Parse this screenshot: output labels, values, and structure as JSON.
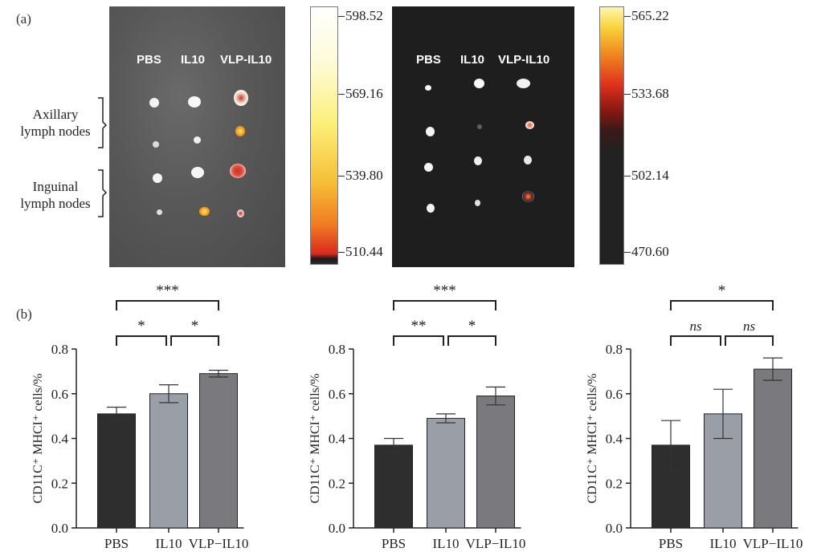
{
  "panel_a": {
    "label": "(a)",
    "left_image": {
      "groups": [
        "PBS",
        "IL10",
        "VLP-IL10"
      ]
    },
    "right_image": {
      "groups": [
        "PBS",
        "IL10",
        "VLP-IL10"
      ]
    },
    "left_colorbar": {
      "ticks": [
        "598.52",
        "569.16",
        "539.80",
        "510.44"
      ]
    },
    "right_colorbar": {
      "ticks": [
        "565.22",
        "533.68",
        "502.14",
        "470.60"
      ]
    },
    "row_labels": [
      {
        "line1": "Axillary",
        "line2": "lymph nodes"
      },
      {
        "line1": "Inguinal",
        "line2": "lymph nodes"
      }
    ]
  },
  "panel_b": {
    "label": "(b)"
  },
  "chart_data": [
    {
      "type": "bar",
      "ylabel": "CD11C⁺ MHCI⁺ cells/%",
      "categories": [
        "PBS",
        "IL10",
        "VLP−IL10"
      ],
      "values": [
        0.51,
        0.6,
        0.69
      ],
      "errors": [
        0.03,
        0.04,
        0.015
      ],
      "ylim": [
        0.0,
        0.8
      ],
      "yticks": [
        "0.0",
        "0.2",
        "0.4",
        "0.6",
        "0.8"
      ],
      "significance": [
        {
          "from": 0,
          "to": 1,
          "label": "*"
        },
        {
          "from": 1,
          "to": 2,
          "label": "*"
        },
        {
          "from": 0,
          "to": 2,
          "label": "***"
        }
      ]
    },
    {
      "type": "bar",
      "ylabel": "CD11C⁺ MHCI⁺ cells/%",
      "categories": [
        "PBS",
        "IL10",
        "VLP−IL10"
      ],
      "values": [
        0.37,
        0.49,
        0.59
      ],
      "errors": [
        0.03,
        0.02,
        0.04
      ],
      "ylim": [
        0.0,
        0.8
      ],
      "yticks": [
        "0.0",
        "0.2",
        "0.4",
        "0.6",
        "0.8"
      ],
      "significance": [
        {
          "from": 0,
          "to": 1,
          "label": "**"
        },
        {
          "from": 1,
          "to": 2,
          "label": "*"
        },
        {
          "from": 0,
          "to": 2,
          "label": "***"
        }
      ]
    },
    {
      "type": "bar",
      "ylabel": "CD11C⁺ MHCI⁺ cells/%",
      "categories": [
        "PBS",
        "IL10",
        "VLP−IL10"
      ],
      "values": [
        0.37,
        0.51,
        0.71
      ],
      "errors": [
        0.11,
        0.11,
        0.05
      ],
      "ylim": [
        0.0,
        0.8
      ],
      "yticks": [
        "0.0",
        "0.2",
        "0.4",
        "0.6",
        "0.8"
      ],
      "significance": [
        {
          "from": 0,
          "to": 1,
          "label": "ns",
          "italic": true
        },
        {
          "from": 1,
          "to": 2,
          "label": "ns",
          "italic": true
        },
        {
          "from": 0,
          "to": 2,
          "label": "*"
        }
      ]
    }
  ],
  "colors": {
    "bar_pbs": "#2e2e2e",
    "bar_il10": "#9a9ea6",
    "bar_vlp": "#7a7a7e",
    "left_bg": "#555555",
    "right_bg": "#1e1e1e"
  }
}
